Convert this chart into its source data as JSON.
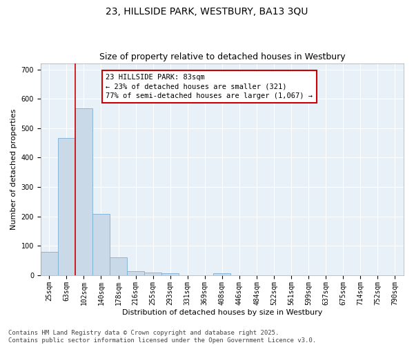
{
  "title_line1": "23, HILLSIDE PARK, WESTBURY, BA13 3QU",
  "title_line2": "Size of property relative to detached houses in Westbury",
  "xlabel": "Distribution of detached houses by size in Westbury",
  "ylabel": "Number of detached properties",
  "categories": [
    "25sqm",
    "63sqm",
    "102sqm",
    "140sqm",
    "178sqm",
    "216sqm",
    "255sqm",
    "293sqm",
    "331sqm",
    "369sqm",
    "408sqm",
    "446sqm",
    "484sqm",
    "522sqm",
    "561sqm",
    "599sqm",
    "637sqm",
    "675sqm",
    "714sqm",
    "752sqm",
    "790sqm"
  ],
  "values": [
    80,
    467,
    567,
    208,
    60,
    15,
    10,
    7,
    0,
    0,
    7,
    0,
    0,
    0,
    0,
    0,
    0,
    0,
    0,
    0,
    0
  ],
  "bar_color": "#c9d9e8",
  "bar_edge_color": "#7bafd4",
  "red_line_x": 1.5,
  "annotation_text": "23 HILLSIDE PARK: 83sqm\n← 23% of detached houses are smaller (321)\n77% of semi-detached houses are larger (1,067) →",
  "annotation_box_color": "#ffffff",
  "annotation_box_edge": "#cc0000",
  "ylim": [
    0,
    720
  ],
  "yticks": [
    0,
    100,
    200,
    300,
    400,
    500,
    600,
    700
  ],
  "background_color": "#e8f0f8",
  "grid_color": "#ffffff",
  "footer_line1": "Contains HM Land Registry data © Crown copyright and database right 2025.",
  "footer_line2": "Contains public sector information licensed under the Open Government Licence v3.0.",
  "title_fontsize": 10,
  "subtitle_fontsize": 9,
  "axis_label_fontsize": 8,
  "tick_fontsize": 7,
  "annotation_fontsize": 7.5,
  "footer_fontsize": 6.5
}
